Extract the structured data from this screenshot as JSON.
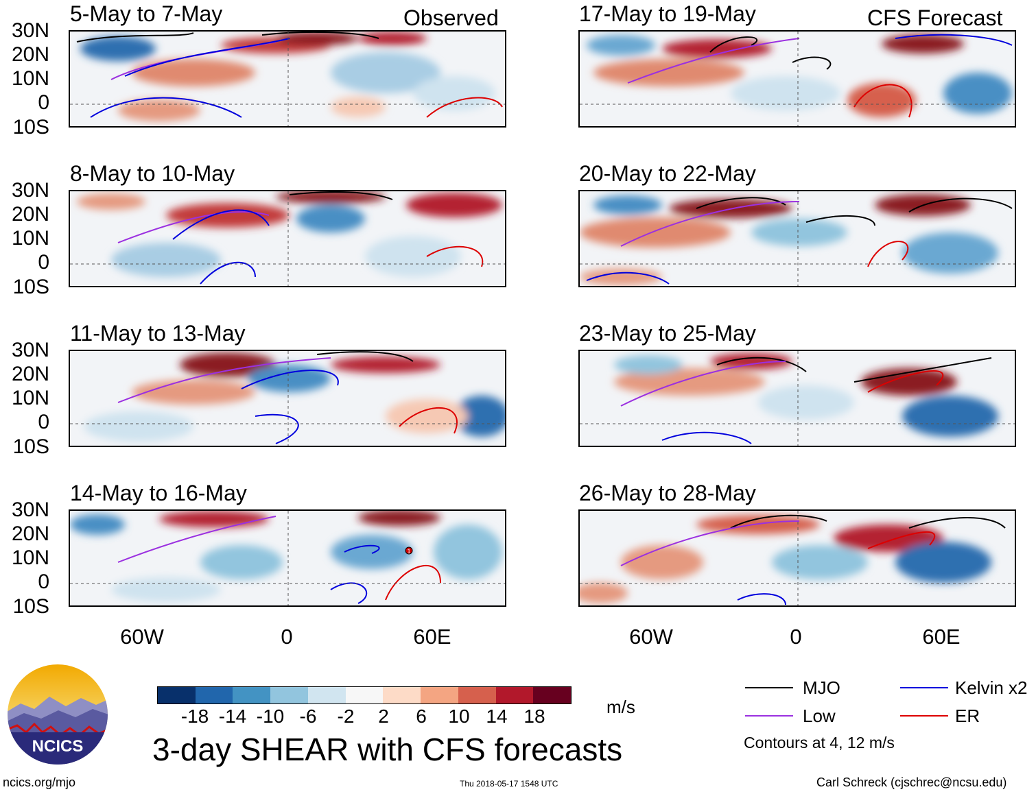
{
  "header": {
    "observed_label": "Observed",
    "forecast_label": "CFS Forecast"
  },
  "lat_labels": [
    "30N",
    "20N",
    "10N",
    "0",
    "10S"
  ],
  "lon_labels": [
    "60W",
    "0",
    "60E"
  ],
  "panels": {
    "observed": [
      {
        "title": "5-May to 7-May"
      },
      {
        "title": "8-May to 10-May"
      },
      {
        "title": "11-May to 13-May"
      },
      {
        "title": "14-May to 16-May"
      }
    ],
    "forecast": [
      {
        "title": "17-May to 19-May"
      },
      {
        "title": "20-May to 22-May"
      },
      {
        "title": "23-May to 25-May"
      },
      {
        "title": "26-May to 28-May"
      }
    ]
  },
  "storm_marker": {
    "label": "1"
  },
  "colorbar": {
    "ticks": [
      "-18",
      "-14",
      "-10",
      "-6",
      "-2",
      "2",
      "6",
      "10",
      "14",
      "18"
    ],
    "colors": [
      "#08306b",
      "#2166ac",
      "#4393c3",
      "#92c5de",
      "#d1e5f0",
      "#f7f7f7",
      "#fddbc7",
      "#f4a582",
      "#d6604d",
      "#b2182b",
      "#67001f"
    ],
    "units": "m/s"
  },
  "legend": {
    "items": [
      {
        "label": "MJO",
        "color": "#000000"
      },
      {
        "label": "Kelvin x2",
        "color": "#0000dd"
      },
      {
        "label": "Low",
        "color": "#9b30e0"
      },
      {
        "label": "ER",
        "color": "#dd0000"
      }
    ],
    "note": "Contours at 4, 12 m/s"
  },
  "logo": {
    "text": "NCICS"
  },
  "title": "3-day SHEAR with CFS forecasts",
  "footer": {
    "url": "ncics.org/mjo",
    "timestamp": "Thu 2018-05-17 1548 UTC",
    "credit": "Carl Schreck (cjschrec@ncsu.edu)"
  },
  "chart_data": {
    "type": "heatmap",
    "title": "3-day SHEAR with CFS forecasts",
    "variable": "vertical wind shear",
    "units": "m/s",
    "lat_range": [
      "10S",
      "30N"
    ],
    "lon_range": [
      "90W",
      "90E"
    ],
    "lat_ticks": [
      "30N",
      "20N",
      "10N",
      "0",
      "10S"
    ],
    "lon_ticks": [
      "60W",
      "0",
      "60E"
    ],
    "color_levels": [
      -18,
      -14,
      -10,
      -6,
      -2,
      2,
      6,
      10,
      14,
      18
    ],
    "contour_levels_m_s": [
      4,
      12
    ],
    "contour_series": [
      "MJO",
      "Kelvin x2",
      "Low",
      "ER"
    ],
    "panels": [
      {
        "period": "5-May to 7-May",
        "kind": "Observed"
      },
      {
        "period": "8-May to 10-May",
        "kind": "Observed"
      },
      {
        "period": "11-May to 13-May",
        "kind": "Observed"
      },
      {
        "period": "14-May to 16-May",
        "kind": "Observed"
      },
      {
        "period": "17-May to 19-May",
        "kind": "CFS Forecast"
      },
      {
        "period": "20-May to 22-May",
        "kind": "CFS Forecast"
      },
      {
        "period": "23-May to 25-May",
        "kind": "CFS Forecast"
      },
      {
        "period": "26-May to 28-May",
        "kind": "CFS Forecast"
      }
    ]
  }
}
